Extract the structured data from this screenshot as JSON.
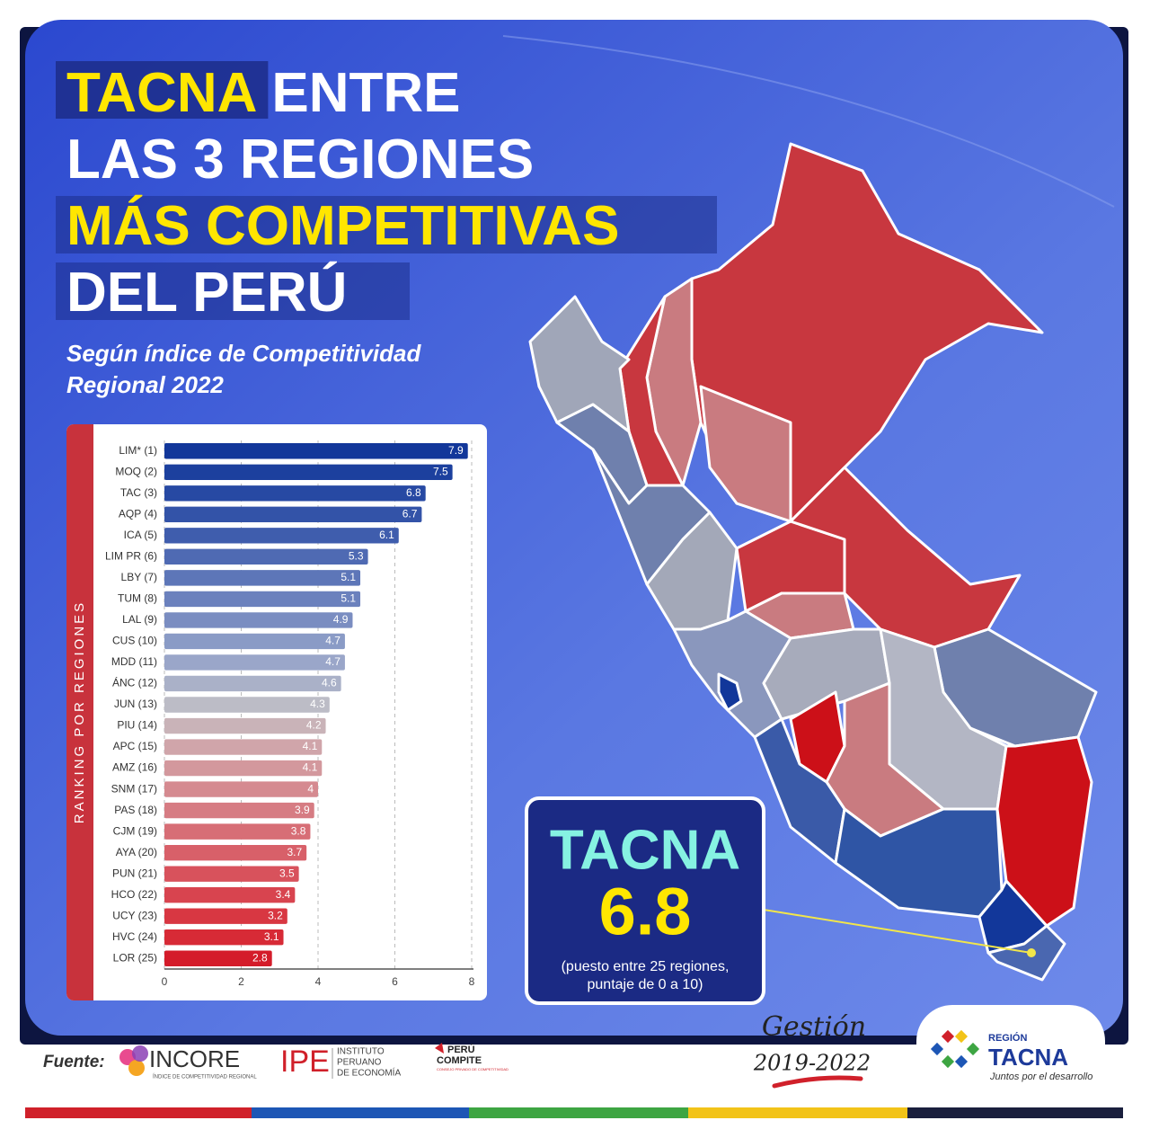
{
  "header": {
    "title": {
      "highlight_1": "TACNA",
      "line_1_rest": "ENTRE",
      "line_2": "LAS 3 REGIONES",
      "line_3": "MÁS COMPETITIVAS",
      "line_4": "DEL PERÚ"
    },
    "subtitle": [
      "Según índice de Competitividad",
      "Regional 2022"
    ]
  },
  "chart_data": {
    "type": "bar",
    "orientation": "horizontal",
    "y_axis_label": "RANKING POR REGIONES",
    "categories": [
      "LIM* (1)",
      "MOQ (2)",
      "TAC (3)",
      "AQP (4)",
      "ICA (5)",
      "LIM PR (6)",
      "LBY (7)",
      "TUM (8)",
      "LAL (9)",
      "CUS (10)",
      "MDD (11)",
      "ÁNC (12)",
      "JUN (13)",
      "PIU (14)",
      "APC (15)",
      "AMZ (16)",
      "SNM (17)",
      "PAS (18)",
      "CJM (19)",
      "AYA (20)",
      "PUN (21)",
      "HCO (22)",
      "UCY (23)",
      "HVC (24)",
      "LOR (25)"
    ],
    "values": [
      7.9,
      7.5,
      6.8,
      6.7,
      6.1,
      5.3,
      5.1,
      5.1,
      4.9,
      4.7,
      4.7,
      4.6,
      4.3,
      4.2,
      4.1,
      4.1,
      4,
      3.9,
      3.8,
      3.7,
      3.5,
      3.4,
      3.2,
      3.1,
      2.8
    ],
    "colors": [
      "#12379a",
      "#1c409e",
      "#2749a3",
      "#3353a8",
      "#3f5dad",
      "#4f6ab3",
      "#5d76b8",
      "#6b81bd",
      "#7a8dc1",
      "#8a9bc6",
      "#9aa6c9",
      "#aab1c8",
      "#bcbcc6",
      "#c9b3b8",
      "#d0a5aa",
      "#d3989d",
      "#d58a90",
      "#d67c83",
      "#d76e76",
      "#d86069",
      "#d8525c",
      "#d8444f",
      "#d83742",
      "#d72a36",
      "#d41c2a"
    ],
    "xlim": [
      0,
      8
    ],
    "xticks": [
      0,
      2,
      4,
      6,
      8
    ],
    "grid": true
  },
  "callout": {
    "name": "TACNA",
    "value": "6.8",
    "note": [
      "(puesto entre 25 regiones,",
      "puntaje de 0 a 10)"
    ]
  },
  "footer": {
    "source_label": "Fuente:",
    "incore": "INCORE",
    "incore_sub": "ÍNDICE DE COMPETITIVIDAD REGIONAL",
    "ipe": "IPE",
    "ipe_sub": [
      "INSTITUTO",
      "PERUANO",
      "DE ECONOMÍA"
    ],
    "peru_compite": [
      "PERÚ",
      "COMPITE"
    ],
    "peru_compite_sub": "CONSEJO PRIVADO DE COMPETITIVIDAD",
    "gestion": "Gestión",
    "period": "2019-2022",
    "region_label": "REGIÓN",
    "region_name": "TACNA",
    "region_slogan": "Juntos por el desarrollo"
  }
}
